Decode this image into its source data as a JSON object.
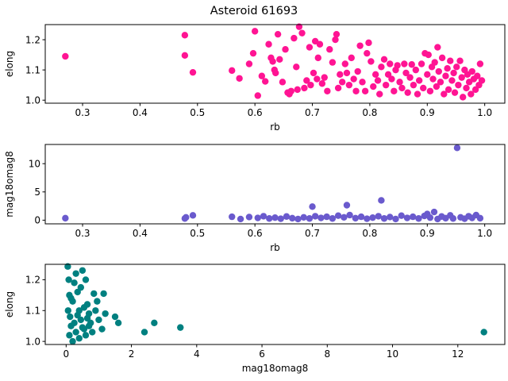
{
  "title": "Asteroid 61693",
  "chart_data": [
    {
      "type": "scatter",
      "xlabel": "rb",
      "ylabel": "elong",
      "color": "#ff1493",
      "xlim": [
        0.235,
        1.035
      ],
      "ylim": [
        0.99,
        1.25
      ],
      "xticks": [
        0.3,
        0.4,
        0.5,
        0.6,
        0.7,
        0.8,
        0.9,
        1.0
      ],
      "xtick_labels": [
        "0.3",
        "0.4",
        "0.5",
        "0.6",
        "0.7",
        "0.8",
        "0.9",
        "1.0"
      ],
      "yticks": [
        1.0,
        1.1,
        1.2
      ],
      "ytick_labels": [
        "1.0",
        "1.1",
        "1.2"
      ],
      "points": [
        [
          0.27,
          1.145
        ],
        [
          0.478,
          1.215
        ],
        [
          0.478,
          1.148
        ],
        [
          0.492,
          1.092
        ],
        [
          0.56,
          1.098
        ],
        [
          0.573,
          1.072
        ],
        [
          0.59,
          1.12
        ],
        [
          0.597,
          1.155
        ],
        [
          0.6,
          1.228
        ],
        [
          0.605,
          1.015
        ],
        [
          0.612,
          1.08
        ],
        [
          0.618,
          1.062
        ],
        [
          0.624,
          1.185
        ],
        [
          0.628,
          1.14
        ],
        [
          0.631,
          1.128
        ],
        [
          0.634,
          1.1
        ],
        [
          0.636,
          1.09
        ],
        [
          0.64,
          1.218
        ],
        [
          0.643,
          1.135
        ],
        [
          0.648,
          1.06
        ],
        [
          0.653,
          1.168
        ],
        [
          0.657,
          1.025
        ],
        [
          0.66,
          1.02
        ],
        [
          0.663,
          1.03
        ],
        [
          0.668,
          1.205
        ],
        [
          0.672,
          1.11
        ],
        [
          0.674,
          1.035
        ],
        [
          0.677,
          1.243
        ],
        [
          0.682,
          1.222
        ],
        [
          0.686,
          1.04
        ],
        [
          0.69,
          1.065
        ],
        [
          0.695,
          1.175
        ],
        [
          0.697,
          1.05
        ],
        [
          0.702,
          1.09
        ],
        [
          0.705,
          1.195
        ],
        [
          0.708,
          1.07
        ],
        [
          0.71,
          1.14
        ],
        [
          0.713,
          1.185
        ],
        [
          0.717,
          1.055
        ],
        [
          0.721,
          1.075
        ],
        [
          0.726,
          1.03
        ],
        [
          0.73,
          1.168
        ],
        [
          0.735,
          1.125
        ],
        [
          0.74,
          1.2
        ],
        [
          0.742,
          1.218
        ],
        [
          0.745,
          1.04
        ],
        [
          0.748,
          1.085
        ],
        [
          0.752,
          1.06
        ],
        [
          0.757,
          1.12
        ],
        [
          0.76,
          1.09
        ],
        [
          0.764,
          1.05
        ],
        [
          0.768,
          1.14
        ],
        [
          0.772,
          1.07
        ],
        [
          0.776,
          1.03
        ],
        [
          0.779,
          1.095
        ],
        [
          0.783,
          1.18
        ],
        [
          0.787,
          1.06
        ],
        [
          0.792,
          1.03
        ],
        [
          0.795,
          1.155
        ],
        [
          0.798,
          1.19
        ],
        [
          0.802,
          1.128
        ],
        [
          0.806,
          1.045
        ],
        [
          0.81,
          1.085
        ],
        [
          0.814,
          1.065
        ],
        [
          0.817,
          1.02
        ],
        [
          0.82,
          1.11
        ],
        [
          0.825,
          1.135
        ],
        [
          0.828,
          1.05
        ],
        [
          0.832,
          1.085
        ],
        [
          0.835,
          1.12
        ],
        [
          0.838,
          1.07
        ],
        [
          0.842,
          1.03
        ],
        [
          0.845,
          1.1
        ],
        [
          0.848,
          1.115
        ],
        [
          0.852,
          1.06
        ],
        [
          0.856,
          1.04
        ],
        [
          0.86,
          1.12
        ],
        [
          0.863,
          1.09
        ],
        [
          0.866,
          1.025
        ],
        [
          0.87,
          1.075
        ],
        [
          0.873,
          1.118
        ],
        [
          0.876,
          1.05
        ],
        [
          0.88,
          1.1
        ],
        [
          0.883,
          1.02
        ],
        [
          0.886,
          1.065
        ],
        [
          0.89,
          1.12
        ],
        [
          0.893,
          1.04
        ],
        [
          0.896,
          1.155
        ],
        [
          0.9,
          1.085
        ],
        [
          0.902,
          1.15
        ],
        [
          0.905,
          1.03
        ],
        [
          0.908,
          1.11
        ],
        [
          0.91,
          1.07
        ],
        [
          0.913,
          1.125
        ],
        [
          0.916,
          1.045
        ],
        [
          0.918,
          1.175
        ],
        [
          0.92,
          1.095
        ],
        [
          0.923,
          1.06
        ],
        [
          0.926,
          1.14
        ],
        [
          0.929,
          1.02
        ],
        [
          0.932,
          1.08
        ],
        [
          0.935,
          1.105
        ],
        [
          0.937,
          1.035
        ],
        [
          0.94,
          1.13
        ],
        [
          0.943,
          1.065
        ],
        [
          0.946,
          1.09
        ],
        [
          0.948,
          1.025
        ],
        [
          0.951,
          1.11
        ],
        [
          0.954,
          1.05
        ],
        [
          0.957,
          1.13
        ],
        [
          0.96,
          1.075
        ],
        [
          0.962,
          1.01
        ],
        [
          0.965,
          1.1
        ],
        [
          0.968,
          1.04
        ],
        [
          0.97,
          1.085
        ],
        [
          0.973,
          1.06
        ],
        [
          0.976,
          1.02
        ],
        [
          0.978,
          1.095
        ],
        [
          0.981,
          1.07
        ],
        [
          0.984,
          1.035
        ],
        [
          0.987,
          1.08
        ],
        [
          0.99,
          1.05
        ],
        [
          0.992,
          1.12
        ],
        [
          0.995,
          1.065
        ]
      ]
    },
    {
      "type": "scatter",
      "xlabel": "rb",
      "ylabel": "mag18omag8",
      "color": "#6a5acd",
      "xlim": [
        0.235,
        1.035
      ],
      "ylim": [
        -0.65,
        13.4
      ],
      "xticks": [
        0.3,
        0.4,
        0.5,
        0.6,
        0.7,
        0.8,
        0.9,
        1.0
      ],
      "xtick_labels": [
        "0.3",
        "0.4",
        "0.5",
        "0.6",
        "0.7",
        "0.8",
        "0.9",
        "1.0"
      ],
      "yticks": [
        0,
        5,
        10
      ],
      "ytick_labels": [
        "0",
        "5",
        "10"
      ],
      "points": [
        [
          0.27,
          0.35
        ],
        [
          0.478,
          0.3
        ],
        [
          0.48,
          0.5
        ],
        [
          0.492,
          0.85
        ],
        [
          0.56,
          0.6
        ],
        [
          0.575,
          0.2
        ],
        [
          0.59,
          0.55
        ],
        [
          0.605,
          0.4
        ],
        [
          0.615,
          0.7
        ],
        [
          0.625,
          0.3
        ],
        [
          0.635,
          0.45
        ],
        [
          0.645,
          0.25
        ],
        [
          0.655,
          0.65
        ],
        [
          0.665,
          0.35
        ],
        [
          0.675,
          0.2
        ],
        [
          0.685,
          0.5
        ],
        [
          0.695,
          0.3
        ],
        [
          0.7,
          2.4
        ],
        [
          0.705,
          0.7
        ],
        [
          0.715,
          0.4
        ],
        [
          0.725,
          0.6
        ],
        [
          0.735,
          0.3
        ],
        [
          0.745,
          0.8
        ],
        [
          0.755,
          0.5
        ],
        [
          0.76,
          2.65
        ],
        [
          0.765,
          0.9
        ],
        [
          0.775,
          0.35
        ],
        [
          0.785,
          0.6
        ],
        [
          0.795,
          0.25
        ],
        [
          0.805,
          0.45
        ],
        [
          0.815,
          0.7
        ],
        [
          0.82,
          3.5
        ],
        [
          0.825,
          0.3
        ],
        [
          0.835,
          0.55
        ],
        [
          0.845,
          0.2
        ],
        [
          0.855,
          0.8
        ],
        [
          0.865,
          0.4
        ],
        [
          0.875,
          0.6
        ],
        [
          0.885,
          0.3
        ],
        [
          0.895,
          0.75
        ],
        [
          0.9,
          1.1
        ],
        [
          0.905,
          0.45
        ],
        [
          0.912,
          1.45
        ],
        [
          0.918,
          0.2
        ],
        [
          0.925,
          0.65
        ],
        [
          0.932,
          0.35
        ],
        [
          0.94,
          0.85
        ],
        [
          0.945,
          0.3
        ],
        [
          0.952,
          12.8
        ],
        [
          0.958,
          0.5
        ],
        [
          0.965,
          0.25
        ],
        [
          0.972,
          0.7
        ],
        [
          0.978,
          0.4
        ],
        [
          0.985,
          0.9
        ],
        [
          0.992,
          0.35
        ]
      ]
    },
    {
      "type": "scatter",
      "xlabel": "mag18omag8",
      "ylabel": "elong",
      "color": "#008080",
      "xlim": [
        -0.64,
        13.44
      ],
      "ylim": [
        0.99,
        1.25
      ],
      "xticks": [
        0,
        2,
        4,
        6,
        8,
        10,
        12
      ],
      "xtick_labels": [
        "0",
        "2",
        "4",
        "6",
        "8",
        "10",
        "12"
      ],
      "yticks": [
        1.0,
        1.1,
        1.2
      ],
      "ytick_labels": [
        "1.0",
        "1.1",
        "1.2"
      ],
      "points": [
        [
          0.05,
          1.243
        ],
        [
          0.08,
          1.2
        ],
        [
          0.1,
          1.15
        ],
        [
          0.06,
          1.1
        ],
        [
          0.12,
          1.08
        ],
        [
          0.15,
          1.05
        ],
        [
          0.1,
          1.02
        ],
        [
          0.2,
          1.13
        ],
        [
          0.25,
          1.19
        ],
        [
          0.3,
          1.22
        ],
        [
          0.35,
          1.16
        ],
        [
          0.4,
          1.1
        ],
        [
          0.45,
          1.07
        ],
        [
          0.5,
          1.23
        ],
        [
          0.55,
          1.04
        ],
        [
          0.6,
          1.2
        ],
        [
          0.65,
          1.12
        ],
        [
          0.7,
          1.09
        ],
        [
          0.75,
          1.06
        ],
        [
          0.8,
          1.03
        ],
        [
          0.85,
          1.155
        ],
        [
          0.9,
          1.1
        ],
        [
          0.95,
          1.13
        ],
        [
          1.0,
          1.07
        ],
        [
          1.1,
          1.04
        ],
        [
          1.15,
          1.155
        ],
        [
          1.2,
          1.09
        ],
        [
          0.2,
          1.0
        ],
        [
          0.3,
          1.03
        ],
        [
          0.4,
          1.01
        ],
        [
          0.15,
          1.14
        ],
        [
          0.25,
          1.06
        ],
        [
          0.35,
          1.085
        ],
        [
          0.5,
          1.045
        ],
        [
          0.6,
          1.02
        ],
        [
          0.7,
          1.05
        ],
        [
          0.45,
          1.175
        ],
        [
          0.55,
          1.11
        ],
        [
          0.65,
          1.075
        ],
        [
          1.5,
          1.08
        ],
        [
          1.6,
          1.06
        ],
        [
          2.4,
          1.03
        ],
        [
          2.7,
          1.06
        ],
        [
          3.5,
          1.045
        ],
        [
          12.8,
          1.03
        ]
      ]
    }
  ]
}
